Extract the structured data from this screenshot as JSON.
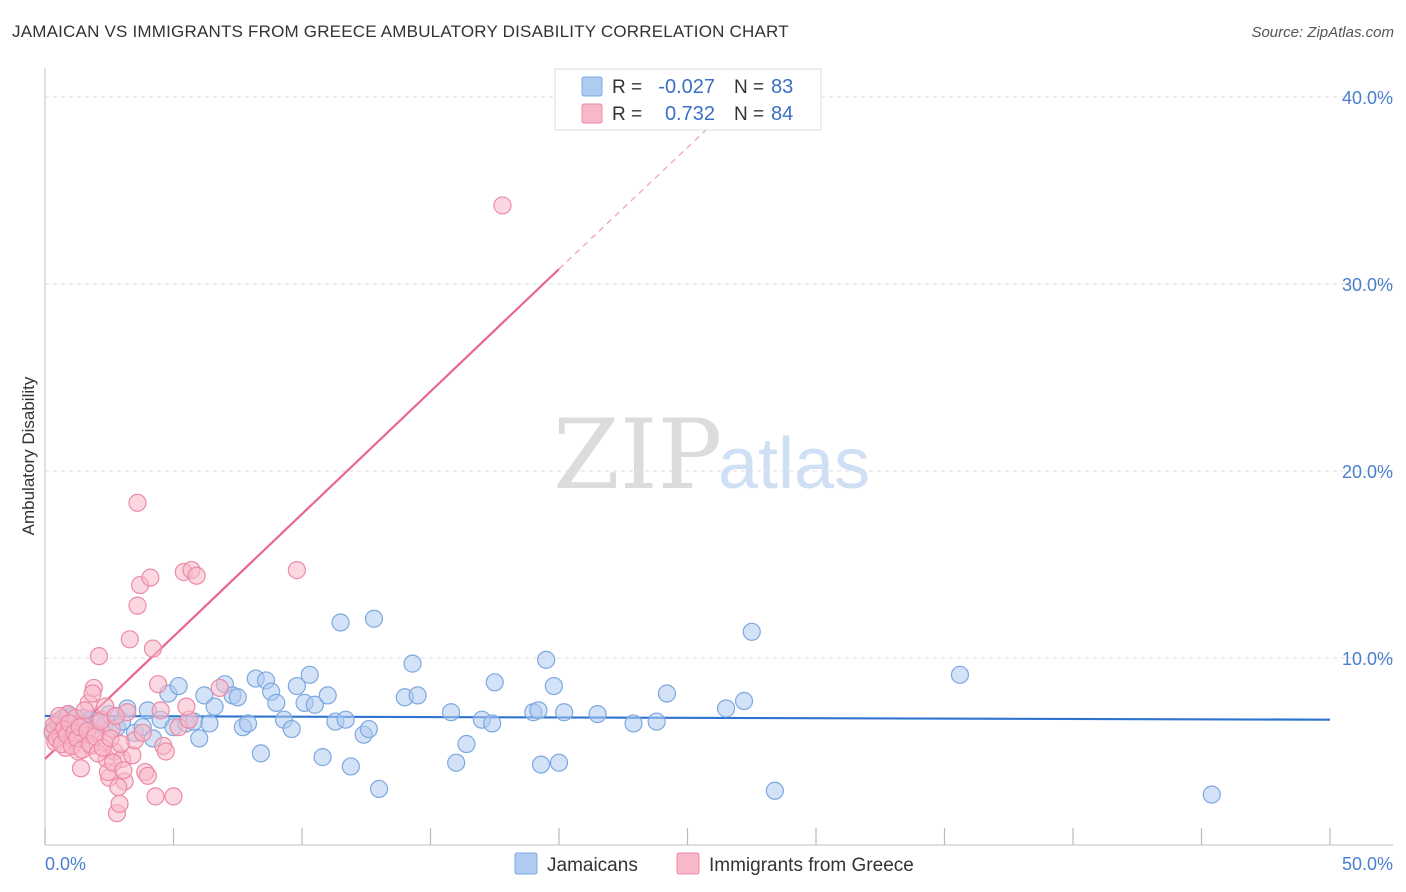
{
  "title": "JAMAICAN VS IMMIGRANTS FROM GREECE AMBULATORY DISABILITY CORRELATION CHART",
  "source": "Source: ZipAtlas.com",
  "watermark": {
    "zip": "ZIP",
    "atlas": "atlas"
  },
  "colors": {
    "blue_fill": "#aecbf0",
    "blue_stroke": "#7da8e0",
    "blue_line": "#2f73d0",
    "pink_fill": "#f7b8c9",
    "pink_stroke": "#ec8aa7",
    "pink_line": "#e8668f",
    "grid": "#dddddd",
    "tick_text": "#4a7fd0"
  },
  "legend": {
    "rows": [
      {
        "r_label": "R =",
        "r_value": "-0.027",
        "n_label": "N =",
        "n_value": "83"
      },
      {
        "r_label": "R =",
        "r_value": "0.732",
        "n_label": "N =",
        "n_value": "84"
      }
    ]
  },
  "bottom_legend": {
    "series1": "Jamaicans",
    "series2": "Immigrants from Greece"
  },
  "chart_data": {
    "type": "scatter",
    "title": "JAMAICAN VS IMMIGRANTS FROM GREECE AMBULATORY DISABILITY CORRELATION CHART",
    "xlabel": "",
    "ylabel": "Ambulatory Disability",
    "xlim": [
      0,
      50
    ],
    "ylim": [
      0,
      40
    ],
    "x_tick_labels": [
      "0.0%",
      "50.0%"
    ],
    "y_ticks": [
      10,
      20,
      30,
      40
    ],
    "y_tick_labels": [
      "10.0%",
      "20.0%",
      "30.0%",
      "40.0%"
    ],
    "series": [
      {
        "name": "Jamaicans",
        "R": -0.027,
        "N": 83,
        "trend": {
          "x": [
            0,
            50
          ],
          "y": [
            6.9,
            6.7
          ]
        },
        "points": [
          [
            0.5,
            6.5
          ],
          [
            0.7,
            6.8
          ],
          [
            0.8,
            6.2
          ],
          [
            1.0,
            6.9
          ],
          [
            1.2,
            6.5
          ],
          [
            1.4,
            6.6
          ],
          [
            1.6,
            6.4
          ],
          [
            1.8,
            6.7
          ],
          [
            2.0,
            6.5
          ],
          [
            2.3,
            6.4
          ],
          [
            2.5,
            7.0
          ],
          [
            2.8,
            6.3
          ],
          [
            3.0,
            6.6
          ],
          [
            3.2,
            7.3
          ],
          [
            3.5,
            6.0
          ],
          [
            3.8,
            6.3
          ],
          [
            4.0,
            7.2
          ],
          [
            4.2,
            5.7
          ],
          [
            4.5,
            6.7
          ],
          [
            4.8,
            8.1
          ],
          [
            5.0,
            6.3
          ],
          [
            5.2,
            8.5
          ],
          [
            5.5,
            6.5
          ],
          [
            5.8,
            6.6
          ],
          [
            6.0,
            5.7
          ],
          [
            6.2,
            8.0
          ],
          [
            6.4,
            6.5
          ],
          [
            6.6,
            7.4
          ],
          [
            7.0,
            8.6
          ],
          [
            7.3,
            8.0
          ],
          [
            7.5,
            7.9
          ],
          [
            7.7,
            6.3
          ],
          [
            7.9,
            6.5
          ],
          [
            8.2,
            8.9
          ],
          [
            8.4,
            4.9
          ],
          [
            8.6,
            8.8
          ],
          [
            8.8,
            8.2
          ],
          [
            9.0,
            7.6
          ],
          [
            9.3,
            6.7
          ],
          [
            9.6,
            6.2
          ],
          [
            9.8,
            8.5
          ],
          [
            10.1,
            7.6
          ],
          [
            10.3,
            9.1
          ],
          [
            10.5,
            7.5
          ],
          [
            10.8,
            4.7
          ],
          [
            11.0,
            8.0
          ],
          [
            11.3,
            6.6
          ],
          [
            11.5,
            11.9
          ],
          [
            11.7,
            6.7
          ],
          [
            11.9,
            4.2
          ],
          [
            12.4,
            5.9
          ],
          [
            12.6,
            6.2
          ],
          [
            12.8,
            12.1
          ],
          [
            13.0,
            3.0
          ],
          [
            14.0,
            7.9
          ],
          [
            14.3,
            9.7
          ],
          [
            14.5,
            8.0
          ],
          [
            15.8,
            7.1
          ],
          [
            16.0,
            4.4
          ],
          [
            16.4,
            5.4
          ],
          [
            17.0,
            6.7
          ],
          [
            17.4,
            6.5
          ],
          [
            17.5,
            8.7
          ],
          [
            19.0,
            7.1
          ],
          [
            19.2,
            7.2
          ],
          [
            19.3,
            4.3
          ],
          [
            19.5,
            9.9
          ],
          [
            19.8,
            8.5
          ],
          [
            20.0,
            4.4
          ],
          [
            20.2,
            7.1
          ],
          [
            21.5,
            7.0
          ],
          [
            22.9,
            6.5
          ],
          [
            23.8,
            6.6
          ],
          [
            24.2,
            8.1
          ],
          [
            26.5,
            7.3
          ],
          [
            27.2,
            7.7
          ],
          [
            27.5,
            11.4
          ],
          [
            28.4,
            2.9
          ],
          [
            35.6,
            9.1
          ],
          [
            45.4,
            2.7
          ],
          [
            0.3,
            6.1
          ],
          [
            0.9,
            7.0
          ],
          [
            1.5,
            6.8
          ]
        ]
      },
      {
        "name": "Immigrants from Greece",
        "R": 0.732,
        "N": 84,
        "trend": {
          "x": [
            0,
            20
          ],
          "y": [
            4.6,
            30.8
          ]
        },
        "trend_dashed": {
          "x": [
            20,
            27
          ],
          "y": [
            30.8,
            39.9
          ]
        },
        "points": [
          [
            0.3,
            6.0
          ],
          [
            0.4,
            5.5
          ],
          [
            0.5,
            6.6
          ],
          [
            0.6,
            5.8
          ],
          [
            0.7,
            6.3
          ],
          [
            0.8,
            5.2
          ],
          [
            0.9,
            7.0
          ],
          [
            1.0,
            6.1
          ],
          [
            1.1,
            5.6
          ],
          [
            1.2,
            6.8
          ],
          [
            1.3,
            5.0
          ],
          [
            1.4,
            4.1
          ],
          [
            1.5,
            6.4
          ],
          [
            1.6,
            5.9
          ],
          [
            1.7,
            7.6
          ],
          [
            1.8,
            5.3
          ],
          [
            1.9,
            8.4
          ],
          [
            2.0,
            6.0
          ],
          [
            2.1,
            10.1
          ],
          [
            2.2,
            6.7
          ],
          [
            2.3,
            5.5
          ],
          [
            2.4,
            4.6
          ],
          [
            2.5,
            3.6
          ],
          [
            2.6,
            6.2
          ],
          [
            2.7,
            5.0
          ],
          [
            2.8,
            1.7
          ],
          [
            2.9,
            2.2
          ],
          [
            3.0,
            4.6
          ],
          [
            3.1,
            3.4
          ],
          [
            3.2,
            7.1
          ],
          [
            3.3,
            11.0
          ],
          [
            3.4,
            4.8
          ],
          [
            3.5,
            5.6
          ],
          [
            3.6,
            12.8
          ],
          [
            3.7,
            13.9
          ],
          [
            3.8,
            6.0
          ],
          [
            3.9,
            3.9
          ],
          [
            4.0,
            3.7
          ],
          [
            4.1,
            14.3
          ],
          [
            4.2,
            10.5
          ],
          [
            4.3,
            2.6
          ],
          [
            4.4,
            8.6
          ],
          [
            4.5,
            7.2
          ],
          [
            4.6,
            5.3
          ],
          [
            4.7,
            5.0
          ],
          [
            3.6,
            18.3
          ],
          [
            5.2,
            6.3
          ],
          [
            5.0,
            2.6
          ],
          [
            5.6,
            6.7
          ],
          [
            5.4,
            14.6
          ],
          [
            5.5,
            7.4
          ],
          [
            5.7,
            14.7
          ],
          [
            5.9,
            14.4
          ],
          [
            6.8,
            8.4
          ],
          [
            9.8,
            14.7
          ],
          [
            17.8,
            34.2
          ],
          [
            0.35,
            6.4
          ],
          [
            0.45,
            5.7
          ],
          [
            0.55,
            6.9
          ],
          [
            0.65,
            5.4
          ],
          [
            0.75,
            6.2
          ],
          [
            0.85,
            5.9
          ],
          [
            0.95,
            6.5
          ],
          [
            1.05,
            5.3
          ],
          [
            1.15,
            6.0
          ],
          [
            1.25,
            5.7
          ],
          [
            1.35,
            6.3
          ],
          [
            1.45,
            5.1
          ],
          [
            1.55,
            7.2
          ],
          [
            1.65,
            6.1
          ],
          [
            1.75,
            5.4
          ],
          [
            1.85,
            8.1
          ],
          [
            1.95,
            5.8
          ],
          [
            2.05,
            4.9
          ],
          [
            2.15,
            6.6
          ],
          [
            2.25,
            5.2
          ],
          [
            2.35,
            7.4
          ],
          [
            2.45,
            3.9
          ],
          [
            2.55,
            5.7
          ],
          [
            2.65,
            4.4
          ],
          [
            2.75,
            6.9
          ],
          [
            2.85,
            3.1
          ],
          [
            2.95,
            5.4
          ],
          [
            3.05,
            4.0
          ]
        ]
      }
    ]
  }
}
